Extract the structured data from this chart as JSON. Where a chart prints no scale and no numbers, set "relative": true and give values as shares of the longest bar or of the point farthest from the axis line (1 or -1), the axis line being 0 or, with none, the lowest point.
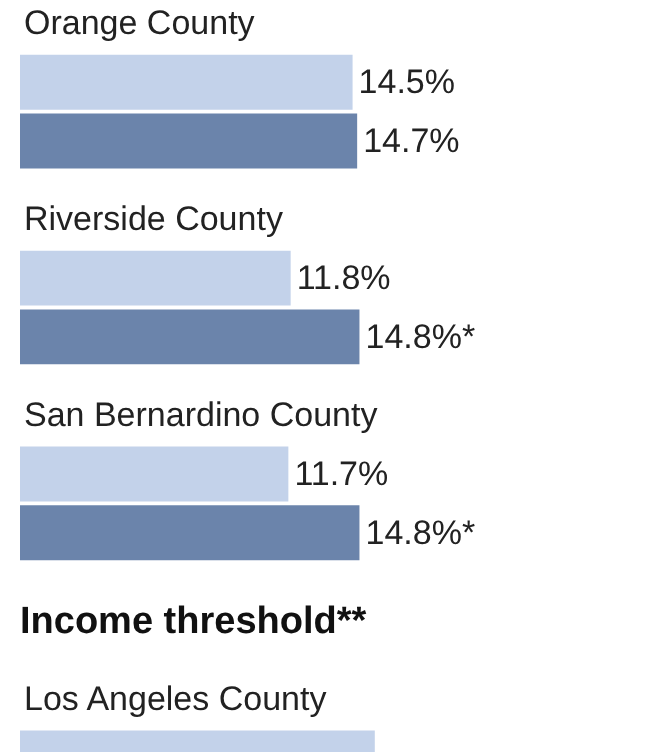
{
  "chart_data": [
    {
      "type": "bar",
      "orientation": "horizontal",
      "categories": [
        "Orange County",
        "Riverside County",
        "San Bernardino County"
      ],
      "series": [
        {
          "color": "#c3d2ea",
          "values": [
            14.5,
            11.8,
            11.7
          ],
          "value_labels": [
            "14.5%",
            "11.8%",
            "11.7%"
          ]
        },
        {
          "color": "#6b84ab",
          "values": [
            14.7,
            14.8,
            14.8
          ],
          "value_labels": [
            "14.7%",
            "14.8%*",
            "14.8%*"
          ]
        }
      ]
    },
    {
      "type": "bar",
      "orientation": "horizontal",
      "relative": true,
      "title": "Income threshold**",
      "categories": [
        "Los Angeles County"
      ],
      "series": [
        {
          "color": "#c3d2ea",
          "values": [
            1
          ]
        }
      ]
    }
  ]
}
